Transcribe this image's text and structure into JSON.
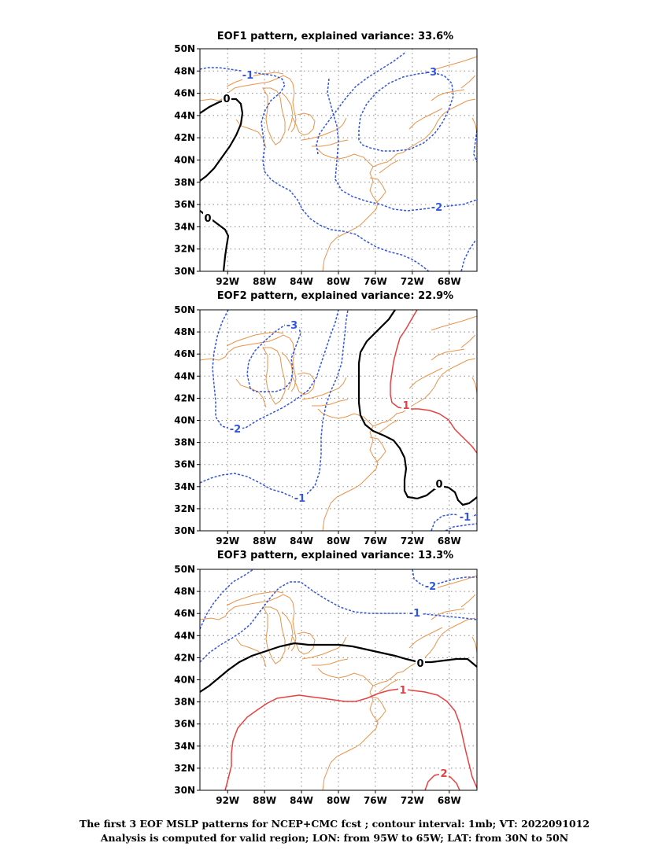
{
  "figure": {
    "caption_line1": "The first 3 EOF MSLP patterns for NCEP+CMC fcst ; contour interval: 1mb; VT: 2022091012",
    "caption_line2": "Analysis is computed for valid region; LON: from 95W to 65W; LAT: from 30N to 50N"
  },
  "axes": {
    "lon_ticks": [
      "92W",
      "88W",
      "84W",
      "80W",
      "76W",
      "72W",
      "68W"
    ],
    "lat_ticks": [
      "30N",
      "32N",
      "34N",
      "36N",
      "38N",
      "40N",
      "42N",
      "44N",
      "46N",
      "48N",
      "50N"
    ]
  },
  "colors": {
    "negative": "#3355dd",
    "zero": "#000000",
    "positive": "#e84040",
    "coastline": "#e8944a",
    "grid": "#888888"
  },
  "panels": [
    {
      "title": "EOF1 pattern, explained variance: 33.6%",
      "labels": [
        "-1",
        "-3",
        "0",
        "0",
        "-2"
      ]
    },
    {
      "title": "EOF2 pattern, explained variance: 22.9%",
      "labels": [
        "-3",
        "-2",
        "-1",
        "1",
        "0",
        "-1"
      ]
    },
    {
      "title": "EOF3 pattern, explained variance: 13.3%",
      "labels": [
        "-2",
        "-1",
        "0",
        "1",
        "2"
      ]
    }
  ]
}
